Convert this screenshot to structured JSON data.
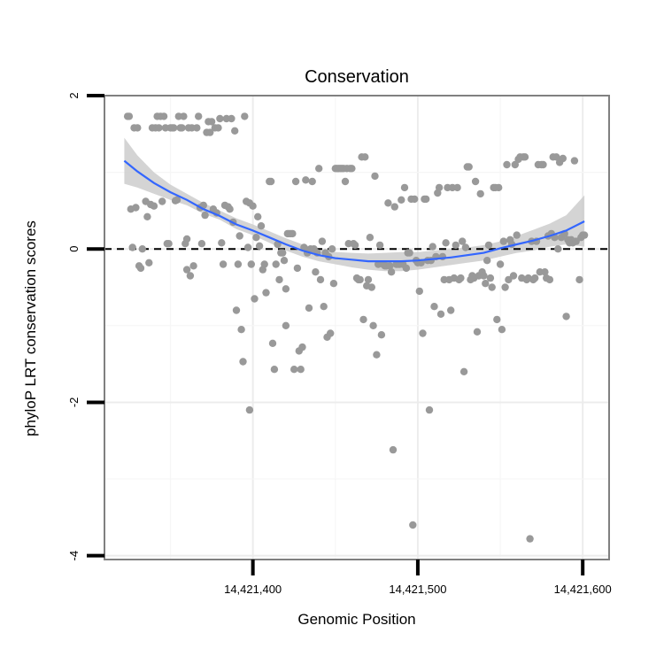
{
  "chart_data": {
    "type": "scatter",
    "title": "Conservation",
    "xlabel": "Genomic Position",
    "ylabel": "phyloP LRT conservation scores",
    "xlim": [
      14421310,
      14421616
    ],
    "ylim": [
      -4.05,
      2.0
    ],
    "x_ticks": [
      14421400,
      14421500,
      14421600
    ],
    "x_tick_labels": [
      "14,421,400",
      "14,421,500",
      "14,421,600"
    ],
    "y_ticks": [
      2,
      0,
      -2,
      -4
    ],
    "y_tick_labels": [
      "2",
      "0",
      "-2",
      "-4"
    ],
    "grid": true,
    "reference_line": {
      "y": 0,
      "style": "dashed"
    },
    "colors": {
      "points": "#999999",
      "smooth": "#3366ff",
      "band": "#cccccc",
      "panel_border": "#808080"
    },
    "points": [
      [
        14421324,
        1.73
      ],
      [
        14421325,
        1.73
      ],
      [
        14421326,
        0.52
      ],
      [
        14421327,
        0.02
      ],
      [
        14421328,
        1.58
      ],
      [
        14421329,
        0.54
      ],
      [
        14421330,
        1.58
      ],
      [
        14421331,
        -0.22
      ],
      [
        14421332,
        -0.25
      ],
      [
        14421333,
        0.0
      ],
      [
        14421335,
        0.62
      ],
      [
        14421336,
        0.42
      ],
      [
        14421337,
        -0.18
      ],
      [
        14421338,
        0.58
      ],
      [
        14421339,
        1.58
      ],
      [
        14421340,
        0.56
      ],
      [
        14421341,
        1.58
      ],
      [
        14421342,
        1.73
      ],
      [
        14421343,
        1.58
      ],
      [
        14421344,
        1.73
      ],
      [
        14421345,
        0.62
      ],
      [
        14421346,
        1.73
      ],
      [
        14421347,
        1.58
      ],
      [
        14421348,
        0.07
      ],
      [
        14421349,
        0.07
      ],
      [
        14421350,
        1.58
      ],
      [
        14421351,
        1.58
      ],
      [
        14421352,
        1.58
      ],
      [
        14421353,
        0.63
      ],
      [
        14421354,
        0.64
      ],
      [
        14421355,
        1.73
      ],
      [
        14421356,
        1.58
      ],
      [
        14421357,
        1.58
      ],
      [
        14421358,
        1.73
      ],
      [
        14421359,
        0.07
      ],
      [
        14421360,
        0.13
      ],
      [
        14421360,
        -0.27
      ],
      [
        14421361,
        1.58
      ],
      [
        14421362,
        -0.35
      ],
      [
        14421363,
        1.58
      ],
      [
        14421364,
        -0.22
      ],
      [
        14421366,
        1.58
      ],
      [
        14421367,
        1.73
      ],
      [
        14421368,
        0.54
      ],
      [
        14421369,
        0.07
      ],
      [
        14421370,
        0.57
      ],
      [
        14421371,
        0.44
      ],
      [
        14421372,
        1.52
      ],
      [
        14421373,
        1.66
      ],
      [
        14421374,
        1.52
      ],
      [
        14421375,
        1.66
      ],
      [
        14421376,
        0.52
      ],
      [
        14421377,
        1.58
      ],
      [
        14421378,
        0.47
      ],
      [
        14421379,
        1.58
      ],
      [
        14421380,
        1.7
      ],
      [
        14421381,
        0.08
      ],
      [
        14421382,
        -0.2
      ],
      [
        14421383,
        0.57
      ],
      [
        14421384,
        1.7
      ],
      [
        14421385,
        0.55
      ],
      [
        14421386,
        0.52
      ],
      [
        14421387,
        1.7
      ],
      [
        14421388,
        0.35
      ],
      [
        14421389,
        1.54
      ],
      [
        14421390,
        -0.8
      ],
      [
        14421391,
        -0.2
      ],
      [
        14421392,
        0.17
      ],
      [
        14421393,
        -1.05
      ],
      [
        14421394,
        -1.47
      ],
      [
        14421395,
        1.73
      ],
      [
        14421396,
        0.62
      ],
      [
        14421397,
        0.02
      ],
      [
        14421398,
        0.6
      ],
      [
        14421398,
        -2.1
      ],
      [
        14421399,
        -0.2
      ],
      [
        14421400,
        0.56
      ],
      [
        14421401,
        -0.65
      ],
      [
        14421402,
        0.15
      ],
      [
        14421403,
        0.42
      ],
      [
        14421404,
        0.04
      ],
      [
        14421405,
        0.3
      ],
      [
        14421406,
        -0.27
      ],
      [
        14421407,
        -0.2
      ],
      [
        14421408,
        -0.57
      ],
      [
        14421410,
        0.88
      ],
      [
        14421411,
        0.88
      ],
      [
        14421412,
        -1.23
      ],
      [
        14421413,
        -1.57
      ],
      [
        14421414,
        -0.2
      ],
      [
        14421415,
        0.06
      ],
      [
        14421416,
        -0.4
      ],
      [
        14421417,
        -0.05
      ],
      [
        14421418,
        -0.05
      ],
      [
        14421419,
        -0.15
      ],
      [
        14421420,
        -1.0
      ],
      [
        14421420,
        -0.52
      ],
      [
        14421421,
        0.2
      ],
      [
        14421422,
        0.2
      ],
      [
        14421423,
        0.2
      ],
      [
        14421424,
        0.2
      ],
      [
        14421425,
        -1.57
      ],
      [
        14421426,
        0.88
      ],
      [
        14421427,
        -0.25
      ],
      [
        14421428,
        -1.33
      ],
      [
        14421429,
        -1.57
      ],
      [
        14421430,
        -1.28
      ],
      [
        14421431,
        0.02
      ],
      [
        14421432,
        0.9
      ],
      [
        14421433,
        -0.05
      ],
      [
        14421434,
        -0.77
      ],
      [
        14421435,
        0.0
      ],
      [
        14421436,
        0.88
      ],
      [
        14421437,
        0.0
      ],
      [
        14421438,
        -0.3
      ],
      [
        14421439,
        -0.05
      ],
      [
        14421440,
        1.05
      ],
      [
        14421441,
        -0.4
      ],
      [
        14421442,
        0.1
      ],
      [
        14421443,
        -0.75
      ],
      [
        14421444,
        -0.05
      ],
      [
        14421445,
        -1.15
      ],
      [
        14421446,
        -0.1
      ],
      [
        14421447,
        -1.1
      ],
      [
        14421448,
        0.0
      ],
      [
        14421449,
        -0.45
      ],
      [
        14421450,
        1.05
      ],
      [
        14421451,
        1.05
      ],
      [
        14421452,
        1.05
      ],
      [
        14421453,
        1.05
      ],
      [
        14421454,
        1.05
      ],
      [
        14421455,
        1.05
      ],
      [
        14421456,
        0.88
      ],
      [
        14421457,
        1.05
      ],
      [
        14421458,
        0.07
      ],
      [
        14421459,
        1.05
      ],
      [
        14421460,
        1.05
      ],
      [
        14421461,
        0.07
      ],
      [
        14421462,
        0.05
      ],
      [
        14421463,
        -0.38
      ],
      [
        14421464,
        -0.4
      ],
      [
        14421465,
        -0.4
      ],
      [
        14421466,
        1.2
      ],
      [
        14421467,
        -0.92
      ],
      [
        14421468,
        1.2
      ],
      [
        14421469,
        -0.48
      ],
      [
        14421470,
        -0.4
      ],
      [
        14421471,
        0.15
      ],
      [
        14421472,
        -0.5
      ],
      [
        14421473,
        -1.0
      ],
      [
        14421474,
        0.95
      ],
      [
        14421475,
        -1.38
      ],
      [
        14421476,
        -0.2
      ],
      [
        14421477,
        0.05
      ],
      [
        14421478,
        -1.12
      ],
      [
        14421479,
        -0.2
      ],
      [
        14421480,
        -0.22
      ],
      [
        14421481,
        -0.22
      ],
      [
        14421482,
        0.6
      ],
      [
        14421483,
        -0.22
      ],
      [
        14421484,
        -0.3
      ],
      [
        14421485,
        -2.62
      ],
      [
        14421486,
        0.55
      ],
      [
        14421487,
        -0.2
      ],
      [
        14421488,
        -0.2
      ],
      [
        14421489,
        -0.2
      ],
      [
        14421490,
        0.64
      ],
      [
        14421491,
        -0.2
      ],
      [
        14421492,
        0.8
      ],
      [
        14421493,
        -0.25
      ],
      [
        14421494,
        -0.05
      ],
      [
        14421495,
        -0.05
      ],
      [
        14421496,
        0.65
      ],
      [
        14421497,
        -3.6
      ],
      [
        14421498,
        0.65
      ],
      [
        14421499,
        -0.15
      ],
      [
        14421500,
        -0.18
      ],
      [
        14421501,
        -0.55
      ],
      [
        14421502,
        -0.18
      ],
      [
        14421503,
        -1.1
      ],
      [
        14421504,
        0.65
      ],
      [
        14421505,
        0.65
      ],
      [
        14421506,
        -0.15
      ],
      [
        14421507,
        -2.1
      ],
      [
        14421508,
        -0.15
      ],
      [
        14421509,
        0.03
      ],
      [
        14421510,
        -0.75
      ],
      [
        14421511,
        -0.1
      ],
      [
        14421512,
        0.73
      ],
      [
        14421513,
        0.8
      ],
      [
        14421514,
        -0.85
      ],
      [
        14421515,
        -0.1
      ],
      [
        14421516,
        -0.4
      ],
      [
        14421517,
        0.08
      ],
      [
        14421518,
        0.8
      ],
      [
        14421519,
        -0.4
      ],
      [
        14421520,
        -0.8
      ],
      [
        14421521,
        0.8
      ],
      [
        14421522,
        -0.38
      ],
      [
        14421523,
        0.05
      ],
      [
        14421524,
        0.8
      ],
      [
        14421525,
        -0.4
      ],
      [
        14421526,
        -0.38
      ],
      [
        14421527,
        0.1
      ],
      [
        14421528,
        -1.6
      ],
      [
        14421529,
        0.02
      ],
      [
        14421530,
        1.07
      ],
      [
        14421531,
        1.07
      ],
      [
        14421532,
        -0.4
      ],
      [
        14421533,
        -0.35
      ],
      [
        14421534,
        -0.38
      ],
      [
        14421535,
        0.88
      ],
      [
        14421536,
        -1.08
      ],
      [
        14421537,
        -0.35
      ],
      [
        14421538,
        0.72
      ],
      [
        14421539,
        -0.3
      ],
      [
        14421540,
        -0.35
      ],
      [
        14421541,
        -0.45
      ],
      [
        14421542,
        -0.15
      ],
      [
        14421543,
        0.05
      ],
      [
        14421544,
        -0.38
      ],
      [
        14421545,
        -0.5
      ],
      [
        14421546,
        0.8
      ],
      [
        14421547,
        0.8
      ],
      [
        14421548,
        -0.92
      ],
      [
        14421549,
        0.8
      ],
      [
        14421550,
        -0.2
      ],
      [
        14421551,
        -1.05
      ],
      [
        14421552,
        0.1
      ],
      [
        14421553,
        -0.5
      ],
      [
        14421554,
        1.1
      ],
      [
        14421555,
        -0.4
      ],
      [
        14421556,
        0.12
      ],
      [
        14421557,
        0.06
      ],
      [
        14421558,
        -0.35
      ],
      [
        14421559,
        1.1
      ],
      [
        14421560,
        0.18
      ],
      [
        14421561,
        1.17
      ],
      [
        14421562,
        1.2
      ],
      [
        14421563,
        -0.38
      ],
      [
        14421564,
        1.2
      ],
      [
        14421565,
        1.2
      ],
      [
        14421566,
        -0.4
      ],
      [
        14421567,
        -0.38
      ],
      [
        14421568,
        -3.78
      ],
      [
        14421569,
        0.1
      ],
      [
        14421570,
        -0.4
      ],
      [
        14421571,
        -0.38
      ],
      [
        14421572,
        0.1
      ],
      [
        14421573,
        1.1
      ],
      [
        14421574,
        -0.3
      ],
      [
        14421575,
        1.1
      ],
      [
        14421576,
        1.1
      ],
      [
        14421577,
        -0.3
      ],
      [
        14421578,
        -0.38
      ],
      [
        14421579,
        0.17
      ],
      [
        14421580,
        -0.4
      ],
      [
        14421581,
        0.2
      ],
      [
        14421582,
        1.2
      ],
      [
        14421583,
        0.15
      ],
      [
        14421584,
        1.2
      ],
      [
        14421585,
        0.0
      ],
      [
        14421586,
        1.13
      ],
      [
        14421587,
        0.15
      ],
      [
        14421588,
        1.18
      ],
      [
        14421589,
        0.2
      ],
      [
        14421590,
        -0.88
      ],
      [
        14421591,
        0.12
      ],
      [
        14421592,
        0.08
      ],
      [
        14421593,
        0.12
      ],
      [
        14421594,
        0.08
      ],
      [
        14421595,
        1.15
      ],
      [
        14421596,
        0.1
      ],
      [
        14421598,
        -0.4
      ],
      [
        14421599,
        0.15
      ],
      [
        14421600,
        0.18
      ],
      [
        14421601,
        0.18
      ]
    ],
    "smooth": {
      "x": [
        14421322,
        14421330,
        14421340,
        14421350,
        14421360,
        14421370,
        14421380,
        14421390,
        14421400,
        14421410,
        14421420,
        14421430,
        14421440,
        14421450,
        14421460,
        14421470,
        14421480,
        14421490,
        14421500,
        14421510,
        14421520,
        14421530,
        14421540,
        14421550,
        14421560,
        14421570,
        14421580,
        14421590,
        14421601
      ],
      "y": [
        1.15,
        1.01,
        0.86,
        0.74,
        0.64,
        0.52,
        0.43,
        0.32,
        0.24,
        0.15,
        0.06,
        -0.02,
        -0.08,
        -0.12,
        -0.14,
        -0.16,
        -0.16,
        -0.16,
        -0.15,
        -0.13,
        -0.11,
        -0.08,
        -0.05,
        0.01,
        0.06,
        0.11,
        0.17,
        0.24,
        0.36
      ],
      "lower": [
        0.85,
        0.8,
        0.72,
        0.64,
        0.57,
        0.46,
        0.38,
        0.26,
        0.18,
        0.08,
        -0.02,
        -0.1,
        -0.16,
        -0.2,
        -0.24,
        -0.27,
        -0.29,
        -0.29,
        -0.27,
        -0.24,
        -0.21,
        -0.18,
        -0.15,
        -0.1,
        -0.05,
        -0.02,
        0.03,
        0.06,
        0.03
      ],
      "upper": [
        1.45,
        1.22,
        1.0,
        0.84,
        0.72,
        0.6,
        0.5,
        0.4,
        0.32,
        0.23,
        0.14,
        0.06,
        0.0,
        -0.04,
        -0.05,
        -0.06,
        -0.05,
        -0.04,
        -0.04,
        -0.02,
        0.0,
        0.02,
        0.05,
        0.1,
        0.17,
        0.25,
        0.33,
        0.44,
        0.7
      ]
    }
  }
}
